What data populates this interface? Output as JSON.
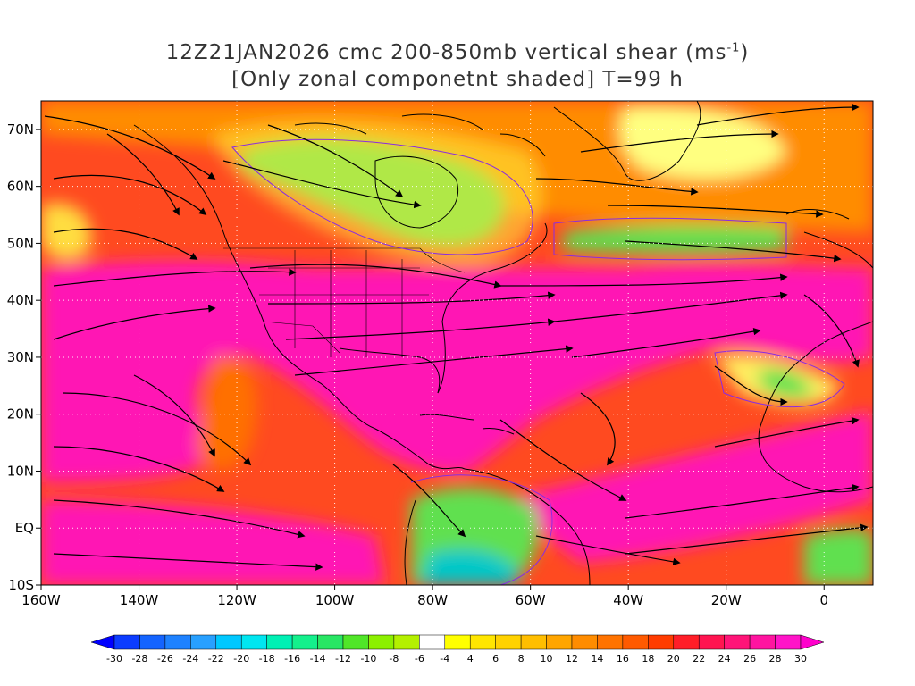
{
  "title": {
    "line1_main": "12Z21JAN2026 cmc 200-850mb vertical shear (ms",
    "line1_sup": "-1",
    "line1_close": ")",
    "line2": "[Only zonal componetnt shaded] T=99 h"
  },
  "map": {
    "lat_labels": [
      "70N",
      "60N",
      "50N",
      "40N",
      "30N",
      "20N",
      "10N",
      "EQ",
      "10S"
    ],
    "lat_values": [
      70,
      60,
      50,
      40,
      30,
      20,
      10,
      0,
      -10
    ],
    "lon_labels": [
      "160W",
      "140W",
      "120W",
      "100W",
      "80W",
      "60W",
      "40W",
      "20W",
      "0"
    ],
    "lon_values": [
      -160,
      -140,
      -120,
      -100,
      -80,
      -60,
      -40,
      -20,
      0
    ],
    "lat_range": [
      -10,
      75
    ],
    "lon_range": [
      -160,
      10
    ],
    "grid": "dotted"
  },
  "colorbar": {
    "labels": [
      "-30",
      "-28",
      "-26",
      "-24",
      "-22",
      "-20",
      "-18",
      "-16",
      "-14",
      "-12",
      "-10",
      "-8",
      "-6",
      "-4",
      "4",
      "6",
      "8",
      "10",
      "12",
      "14",
      "16",
      "18",
      "20",
      "22",
      "24",
      "26",
      "28",
      "30"
    ],
    "colors": [
      "#0000ff",
      "#0c3cff",
      "#1464ff",
      "#1e82ff",
      "#28a0ff",
      "#00c8ff",
      "#00e6f0",
      "#00f0b4",
      "#14f08c",
      "#28e664",
      "#50e628",
      "#8cf000",
      "#b4f000",
      "#ffffff",
      "#ffff00",
      "#ffe600",
      "#ffd200",
      "#ffbe00",
      "#ffa500",
      "#ff8c00",
      "#ff7300",
      "#ff5a00",
      "#ff3c00",
      "#ff1e28",
      "#ff1450",
      "#ff1478",
      "#ff14a0",
      "#ff14c8",
      "#ff00cc"
    ]
  },
  "field_colors": {
    "strong_positive": "#ff14b4",
    "positive": "#ff2060",
    "moderate": "#ff7a00",
    "weak": "#ffd200",
    "near_zero": "#ffffff",
    "negative": "#60e050",
    "strong_negative": "#00c8c8"
  }
}
